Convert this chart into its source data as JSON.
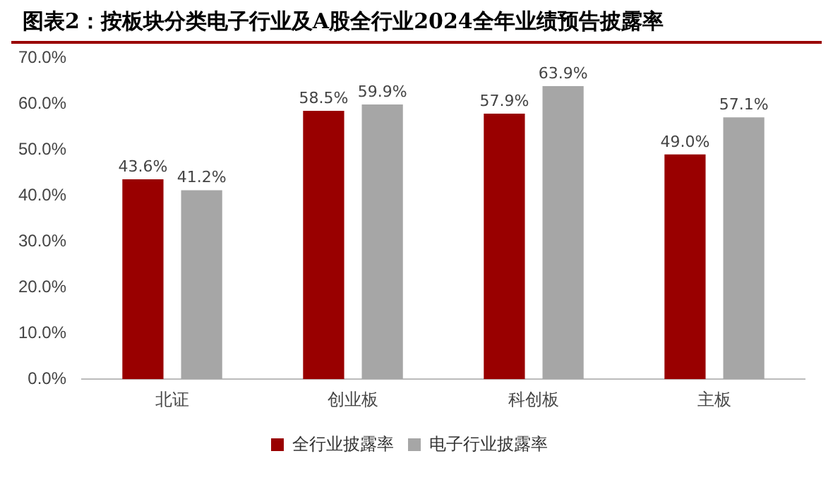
{
  "chart_data": {
    "type": "bar",
    "title": "图表2：按板块分类电子行业及A股全行业2024全年业绩预告披露率",
    "categories": [
      "北证",
      "创业板",
      "科创板",
      "主板"
    ],
    "series": [
      {
        "name": "全行业披露率",
        "color": "#990000",
        "values": [
          43.6,
          58.5,
          57.9,
          49.0
        ],
        "value_labels": [
          "43.6%",
          "58.5%",
          "57.9%",
          "49.0%"
        ]
      },
      {
        "name": "电子行业披露率",
        "color": "#a6a6a6",
        "values": [
          41.2,
          59.9,
          63.9,
          57.1
        ],
        "value_labels": [
          "41.2%",
          "59.9%",
          "63.9%",
          "57.1%"
        ]
      }
    ],
    "ylim": [
      0,
      70
    ],
    "yticks": [
      {
        "value": 0,
        "label": "0.0%"
      },
      {
        "value": 10,
        "label": "10.0%"
      },
      {
        "value": 20,
        "label": "20.0%"
      },
      {
        "value": 30,
        "label": "30.0%"
      },
      {
        "value": 40,
        "label": "40.0%"
      },
      {
        "value": 50,
        "label": "50.0%"
      },
      {
        "value": 60,
        "label": "60.0%"
      },
      {
        "value": 70,
        "label": "70.0%"
      }
    ],
    "grid": false,
    "legend": "bottom"
  }
}
